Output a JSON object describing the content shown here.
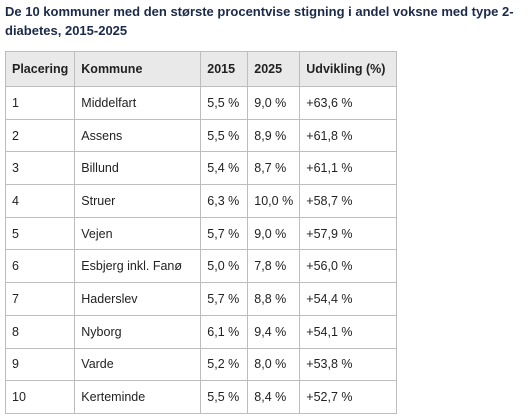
{
  "title": "De 10 kommuner med den største procentvise stigning i andel voksne med type 2-diabetes, 2015-2025",
  "table": {
    "header": [
      "Placering",
      "Kommune",
      "2015",
      "2025",
      "Udvikling (%)"
    ],
    "rows": [
      [
        "1",
        "Middelfart",
        "5,5 %",
        "9,0 %",
        "+63,6 %"
      ],
      [
        "2",
        "Assens",
        "5,5 %",
        "8,9 %",
        "+61,8 %"
      ],
      [
        "3",
        "Billund",
        "5,4 %",
        "8,7 %",
        "+61,1 %"
      ],
      [
        "4",
        "Struer",
        "6,3 %",
        "10,0 %",
        "+58,7 %"
      ],
      [
        "5",
        "Vejen",
        "5,7 %",
        "9,0 %",
        "+57,9 %"
      ],
      [
        "6",
        "Esbjerg inkl. Fanø",
        "5,0 %",
        "7,8 %",
        "+56,0 %"
      ],
      [
        "7",
        "Haderslev",
        "5,7 %",
        "8,8 %",
        "+54,4 %"
      ],
      [
        "8",
        "Nyborg",
        "6,1 %",
        "9,4 %",
        "+54,1 %"
      ],
      [
        "9",
        "Varde",
        "5,2 %",
        "8,0 %",
        "+53,8 %"
      ],
      [
        "10",
        "Kerteminde",
        "5,5 %",
        "8,4 %",
        "+52,7 %"
      ]
    ]
  }
}
